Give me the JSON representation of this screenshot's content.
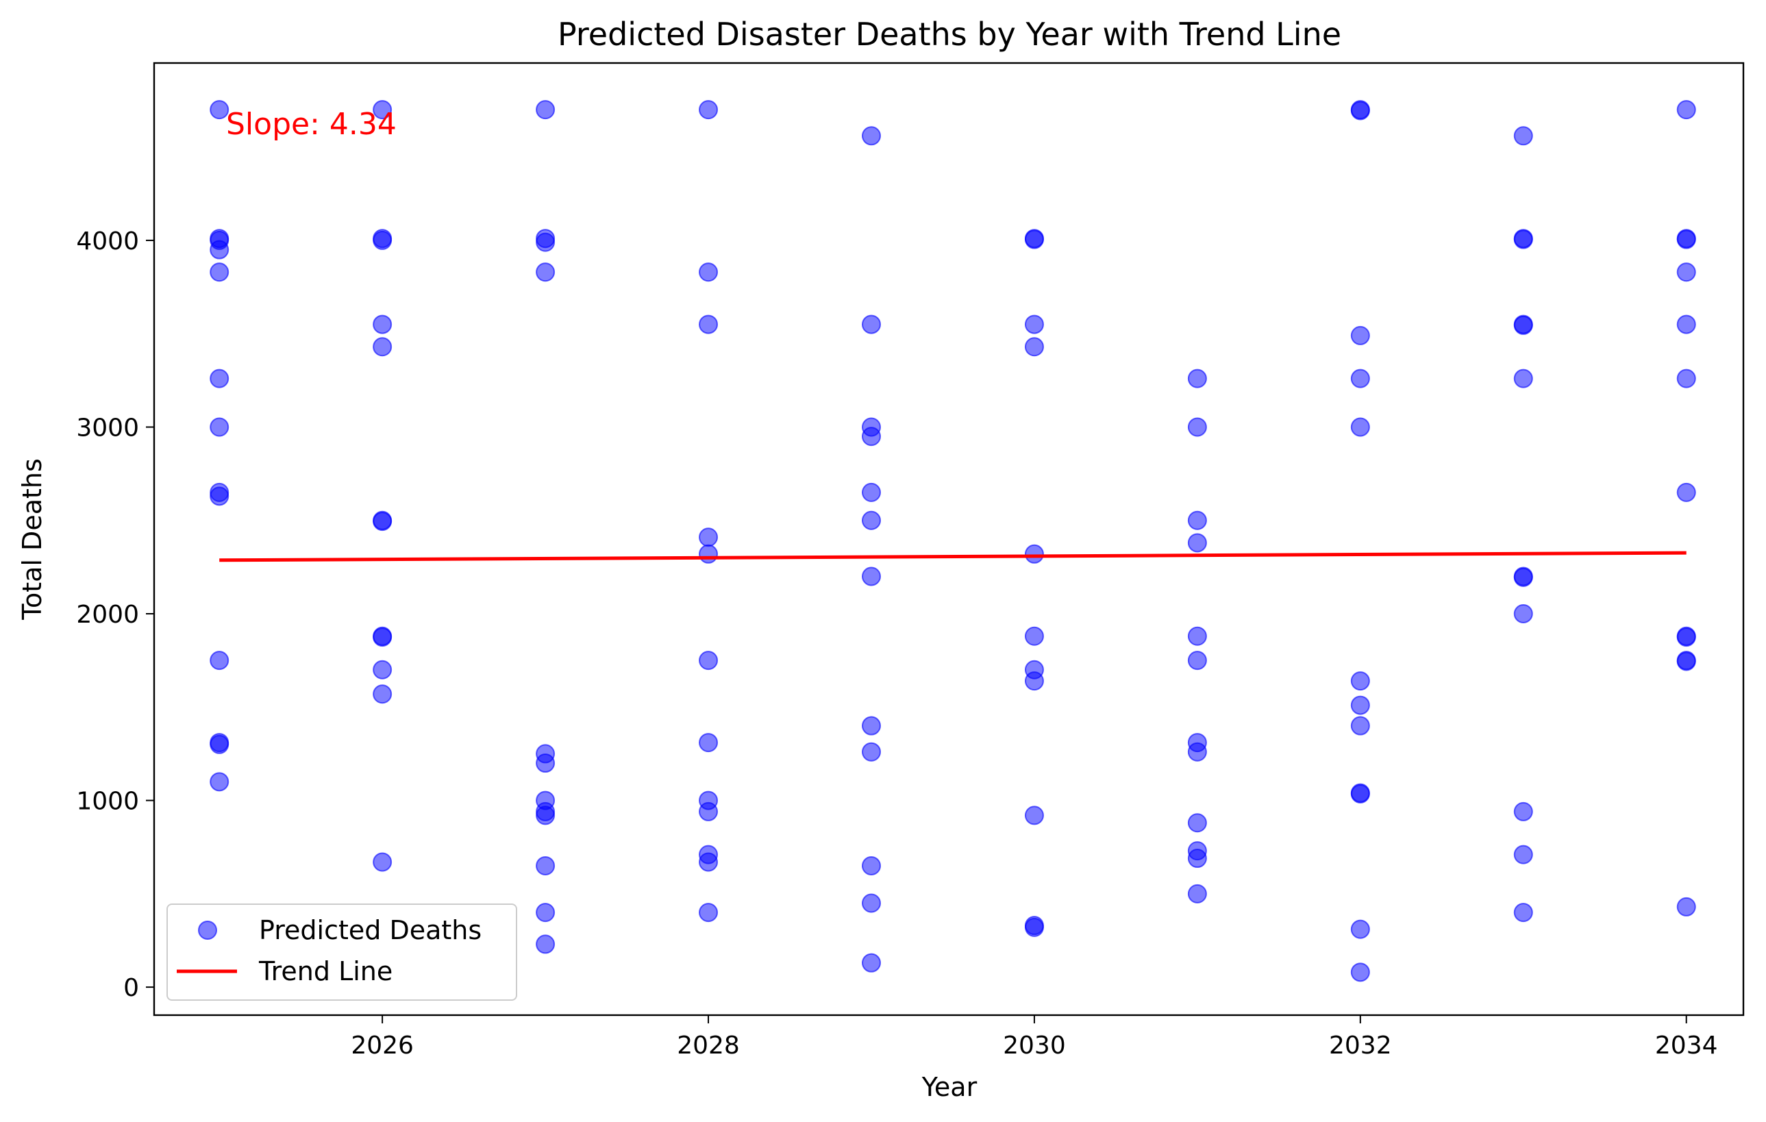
{
  "chart_data": {
    "type": "scatter",
    "title": "Predicted Disaster Deaths by Year with Trend Line",
    "xlabel": "Year",
    "ylabel": "Total Deaths",
    "xlim": [
      2024.6,
      2034.35
    ],
    "ylim": [
      -150,
      4950
    ],
    "xticks": [
      2026,
      2028,
      2030,
      2032,
      2034
    ],
    "yticks": [
      0,
      1000,
      2000,
      3000,
      4000
    ],
    "grid": false,
    "legend_position": "lower-left",
    "annotation": {
      "text": "Slope: 4.34",
      "color": "#ff0000"
    },
    "series": [
      {
        "name": "Predicted Deaths",
        "kind": "scatter",
        "color": "#0000ff",
        "alpha": 0.5,
        "points": [
          [
            2025,
            4700
          ],
          [
            2025,
            4010
          ],
          [
            2025,
            4000
          ],
          [
            2025,
            3950
          ],
          [
            2025,
            3830
          ],
          [
            2025,
            3260
          ],
          [
            2025,
            3000
          ],
          [
            2025,
            2650
          ],
          [
            2025,
            2630
          ],
          [
            2025,
            1750
          ],
          [
            2025,
            1310
          ],
          [
            2025,
            1300
          ],
          [
            2025,
            1100
          ],
          [
            2026,
            4700
          ],
          [
            2026,
            4010
          ],
          [
            2026,
            4000
          ],
          [
            2026,
            3550
          ],
          [
            2026,
            3430
          ],
          [
            2026,
            2500
          ],
          [
            2026,
            2495
          ],
          [
            2026,
            1880
          ],
          [
            2026,
            1875
          ],
          [
            2026,
            1700
          ],
          [
            2026,
            1570
          ],
          [
            2026,
            670
          ],
          [
            2027,
            4700
          ],
          [
            2027,
            4010
          ],
          [
            2027,
            3990
          ],
          [
            2027,
            3830
          ],
          [
            2027,
            1250
          ],
          [
            2027,
            1200
          ],
          [
            2027,
            1000
          ],
          [
            2027,
            940
          ],
          [
            2027,
            920
          ],
          [
            2027,
            650
          ],
          [
            2027,
            400
          ],
          [
            2027,
            230
          ],
          [
            2028,
            4700
          ],
          [
            2028,
            3830
          ],
          [
            2028,
            3550
          ],
          [
            2028,
            2410
          ],
          [
            2028,
            2320
          ],
          [
            2028,
            1750
          ],
          [
            2028,
            1310
          ],
          [
            2028,
            1000
          ],
          [
            2028,
            940
          ],
          [
            2028,
            710
          ],
          [
            2028,
            670
          ],
          [
            2028,
            400
          ],
          [
            2029,
            4560
          ],
          [
            2029,
            3550
          ],
          [
            2029,
            3000
          ],
          [
            2029,
            2950
          ],
          [
            2029,
            2650
          ],
          [
            2029,
            2500
          ],
          [
            2029,
            2200
          ],
          [
            2029,
            1400
          ],
          [
            2029,
            1260
          ],
          [
            2029,
            650
          ],
          [
            2029,
            450
          ],
          [
            2029,
            130
          ],
          [
            2030,
            4010
          ],
          [
            2030,
            4005
          ],
          [
            2030,
            3550
          ],
          [
            2030,
            3430
          ],
          [
            2030,
            2320
          ],
          [
            2030,
            1880
          ],
          [
            2030,
            1700
          ],
          [
            2030,
            1640
          ],
          [
            2030,
            920
          ],
          [
            2030,
            330
          ],
          [
            2030,
            320
          ],
          [
            2031,
            3260
          ],
          [
            2031,
            3000
          ],
          [
            2031,
            2500
          ],
          [
            2031,
            2380
          ],
          [
            2031,
            1880
          ],
          [
            2031,
            1750
          ],
          [
            2031,
            1310
          ],
          [
            2031,
            1260
          ],
          [
            2031,
            880
          ],
          [
            2031,
            730
          ],
          [
            2031,
            690
          ],
          [
            2031,
            500
          ],
          [
            2032,
            4700
          ],
          [
            2032,
            4695
          ],
          [
            2032,
            3490
          ],
          [
            2032,
            3260
          ],
          [
            2032,
            3000
          ],
          [
            2032,
            1640
          ],
          [
            2032,
            1510
          ],
          [
            2032,
            1400
          ],
          [
            2032,
            1040
          ],
          [
            2032,
            1035
          ],
          [
            2032,
            310
          ],
          [
            2032,
            80
          ],
          [
            2033,
            4560
          ],
          [
            2033,
            4010
          ],
          [
            2033,
            4005
          ],
          [
            2033,
            3550
          ],
          [
            2033,
            3545
          ],
          [
            2033,
            3260
          ],
          [
            2033,
            2200
          ],
          [
            2033,
            2195
          ],
          [
            2033,
            2000
          ],
          [
            2033,
            940
          ],
          [
            2033,
            710
          ],
          [
            2033,
            400
          ],
          [
            2034,
            4700
          ],
          [
            2034,
            4010
          ],
          [
            2034,
            4005
          ],
          [
            2034,
            3830
          ],
          [
            2034,
            3550
          ],
          [
            2034,
            3260
          ],
          [
            2034,
            2650
          ],
          [
            2034,
            1880
          ],
          [
            2034,
            1875
          ],
          [
            2034,
            1750
          ],
          [
            2034,
            1745
          ],
          [
            2034,
            430
          ]
        ]
      },
      {
        "name": "Trend Line",
        "kind": "line",
        "color": "#ff0000",
        "x": [
          2025,
          2034
        ],
        "y": [
          2287,
          2326
        ]
      }
    ]
  }
}
